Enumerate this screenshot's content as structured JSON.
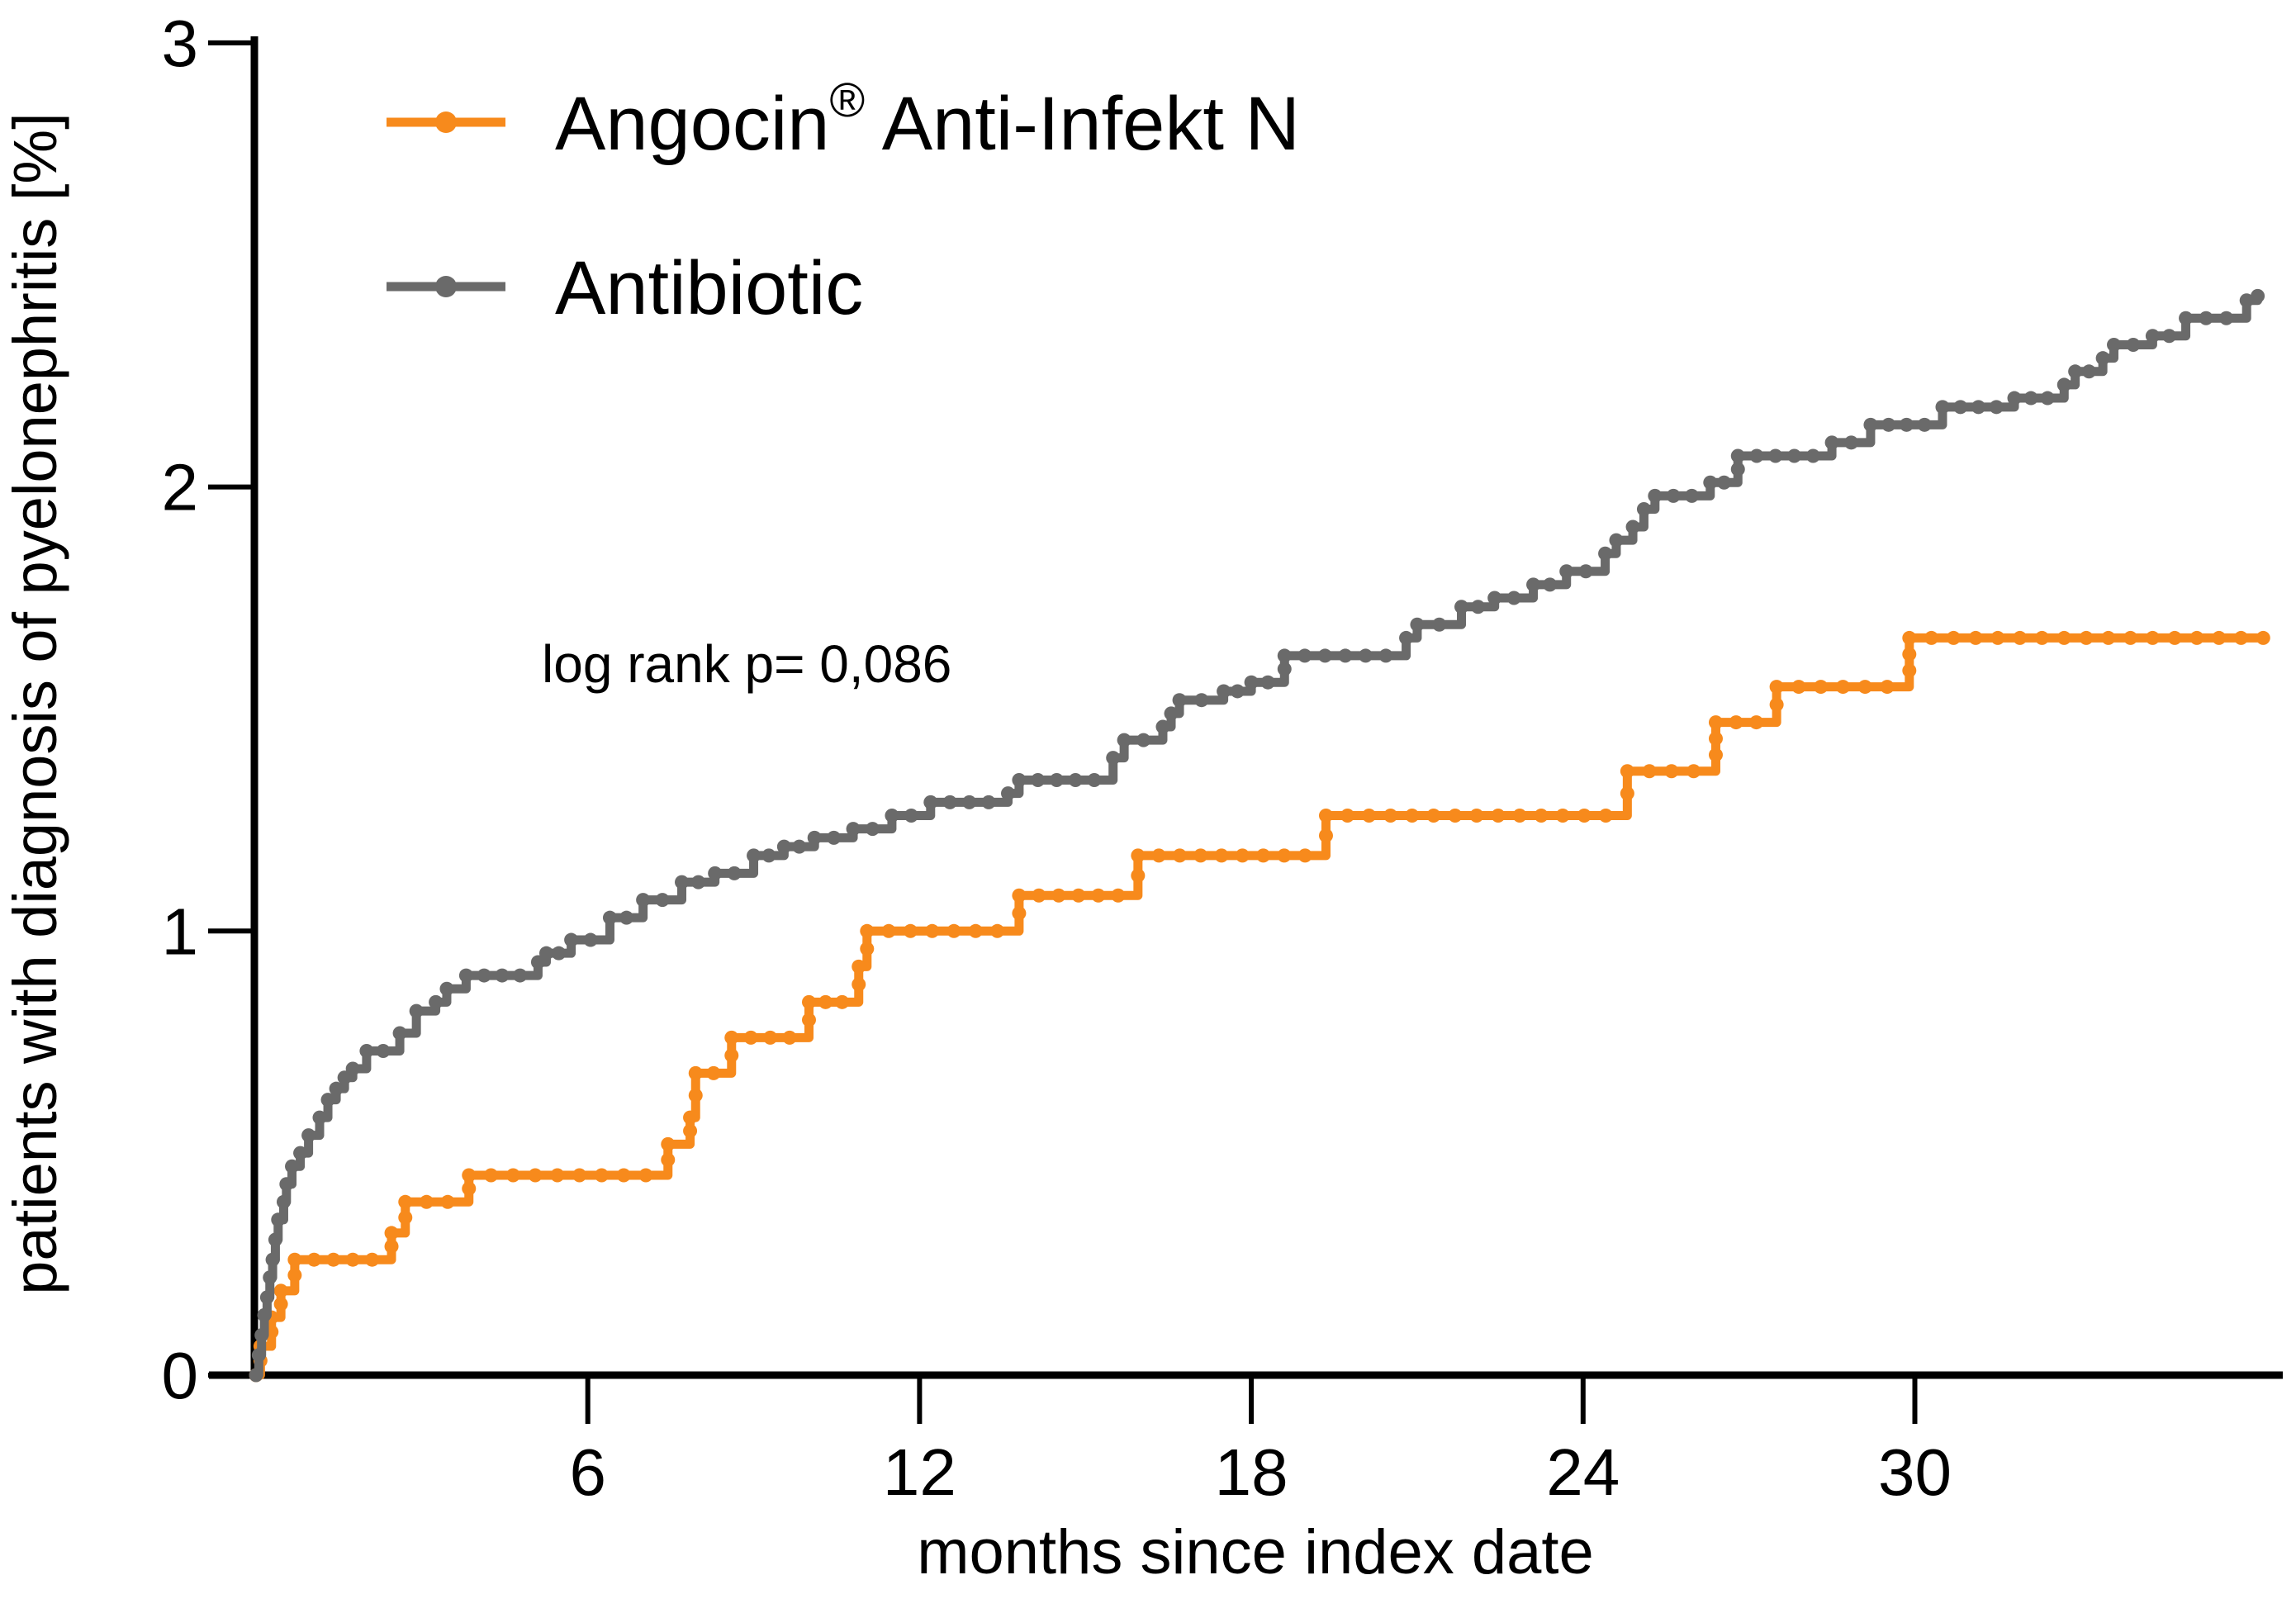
{
  "chart_data": {
    "type": "line",
    "step": "post",
    "title": "",
    "xlabel": "months since index date",
    "ylabel": "patients with diagnosis of pyelonephritis [%]",
    "annotation": {
      "text": "log rank p= 0,086"
    },
    "xlim": [
      0,
      36.6
    ],
    "ylim": [
      0,
      3
    ],
    "x_ticks": [
      6,
      12,
      18,
      24,
      30
    ],
    "y_ticks": [
      0,
      1,
      2,
      3
    ],
    "grid": false,
    "legend_position": "upper-left-inside",
    "axis_color": "#000000",
    "background_color": "#ffffff",
    "series": [
      {
        "name": "Angocin® Anti-Infekt N",
        "label_main": "Angocin",
        "label_sup": "®",
        "label_rest": " Anti-Infekt N",
        "color": "#F78A1C",
        "points": [
          [
            0,
            0
          ],
          [
            0.08,
            0.065
          ],
          [
            0.28,
            0.13
          ],
          [
            0.45,
            0.19
          ],
          [
            0.7,
            0.26
          ],
          [
            2.45,
            0.32
          ],
          [
            2.7,
            0.39
          ],
          [
            3.85,
            0.45
          ],
          [
            7.45,
            0.52
          ],
          [
            7.85,
            0.58
          ],
          [
            7.95,
            0.68
          ],
          [
            8.6,
            0.76
          ],
          [
            10.0,
            0.84
          ],
          [
            10.9,
            0.92
          ],
          [
            11.05,
            1.0
          ],
          [
            13.8,
            1.08
          ],
          [
            15.95,
            1.17
          ],
          [
            19.35,
            1.26
          ],
          [
            24.8,
            1.36
          ],
          [
            26.4,
            1.47
          ],
          [
            27.5,
            1.55
          ],
          [
            29.9,
            1.66
          ],
          [
            36.3,
            1.66
          ]
        ]
      },
      {
        "name": "Antibiotic",
        "label_main": "Antibiotic",
        "label_sup": "",
        "label_rest": "",
        "color": "#6A6A6A",
        "points": [
          [
            0,
            0
          ],
          [
            0.05,
            0.045
          ],
          [
            0.1,
            0.09
          ],
          [
            0.15,
            0.135
          ],
          [
            0.2,
            0.175
          ],
          [
            0.25,
            0.22
          ],
          [
            0.3,
            0.26
          ],
          [
            0.35,
            0.305
          ],
          [
            0.4,
            0.35
          ],
          [
            0.5,
            0.39
          ],
          [
            0.55,
            0.43
          ],
          [
            0.65,
            0.47
          ],
          [
            0.8,
            0.5
          ],
          [
            0.95,
            0.54
          ],
          [
            1.15,
            0.58
          ],
          [
            1.3,
            0.62
          ],
          [
            1.45,
            0.645
          ],
          [
            1.6,
            0.67
          ],
          [
            1.75,
            0.69
          ],
          [
            2.0,
            0.73
          ],
          [
            2.6,
            0.77
          ],
          [
            2.9,
            0.82
          ],
          [
            3.25,
            0.84
          ],
          [
            3.45,
            0.87
          ],
          [
            3.8,
            0.9
          ],
          [
            5.1,
            0.93
          ],
          [
            5.25,
            0.95
          ],
          [
            5.7,
            0.98
          ],
          [
            6.4,
            1.03
          ],
          [
            7.0,
            1.07
          ],
          [
            7.7,
            1.11
          ],
          [
            8.3,
            1.13
          ],
          [
            9.0,
            1.17
          ],
          [
            9.55,
            1.19
          ],
          [
            10.1,
            1.21
          ],
          [
            10.8,
            1.23
          ],
          [
            11.5,
            1.26
          ],
          [
            12.2,
            1.29
          ],
          [
            13.6,
            1.31
          ],
          [
            13.8,
            1.34
          ],
          [
            15.5,
            1.39
          ],
          [
            15.7,
            1.43
          ],
          [
            16.4,
            1.46
          ],
          [
            16.55,
            1.49
          ],
          [
            16.7,
            1.52
          ],
          [
            17.5,
            1.54
          ],
          [
            18.0,
            1.56
          ],
          [
            18.6,
            1.62
          ],
          [
            20.8,
            1.66
          ],
          [
            21.0,
            1.69
          ],
          [
            21.8,
            1.73
          ],
          [
            22.4,
            1.75
          ],
          [
            23.1,
            1.78
          ],
          [
            23.7,
            1.81
          ],
          [
            24.4,
            1.85
          ],
          [
            24.6,
            1.88
          ],
          [
            24.9,
            1.91
          ],
          [
            25.1,
            1.95
          ],
          [
            25.3,
            1.98
          ],
          [
            26.3,
            2.01
          ],
          [
            26.8,
            2.07
          ],
          [
            28.5,
            2.1
          ],
          [
            29.2,
            2.14
          ],
          [
            30.5,
            2.18
          ],
          [
            31.8,
            2.2
          ],
          [
            32.7,
            2.23
          ],
          [
            32.9,
            2.26
          ],
          [
            33.4,
            2.29
          ],
          [
            33.6,
            2.32
          ],
          [
            34.3,
            2.34
          ],
          [
            34.9,
            2.38
          ],
          [
            36.0,
            2.42
          ],
          [
            36.2,
            2.43
          ]
        ]
      }
    ]
  }
}
